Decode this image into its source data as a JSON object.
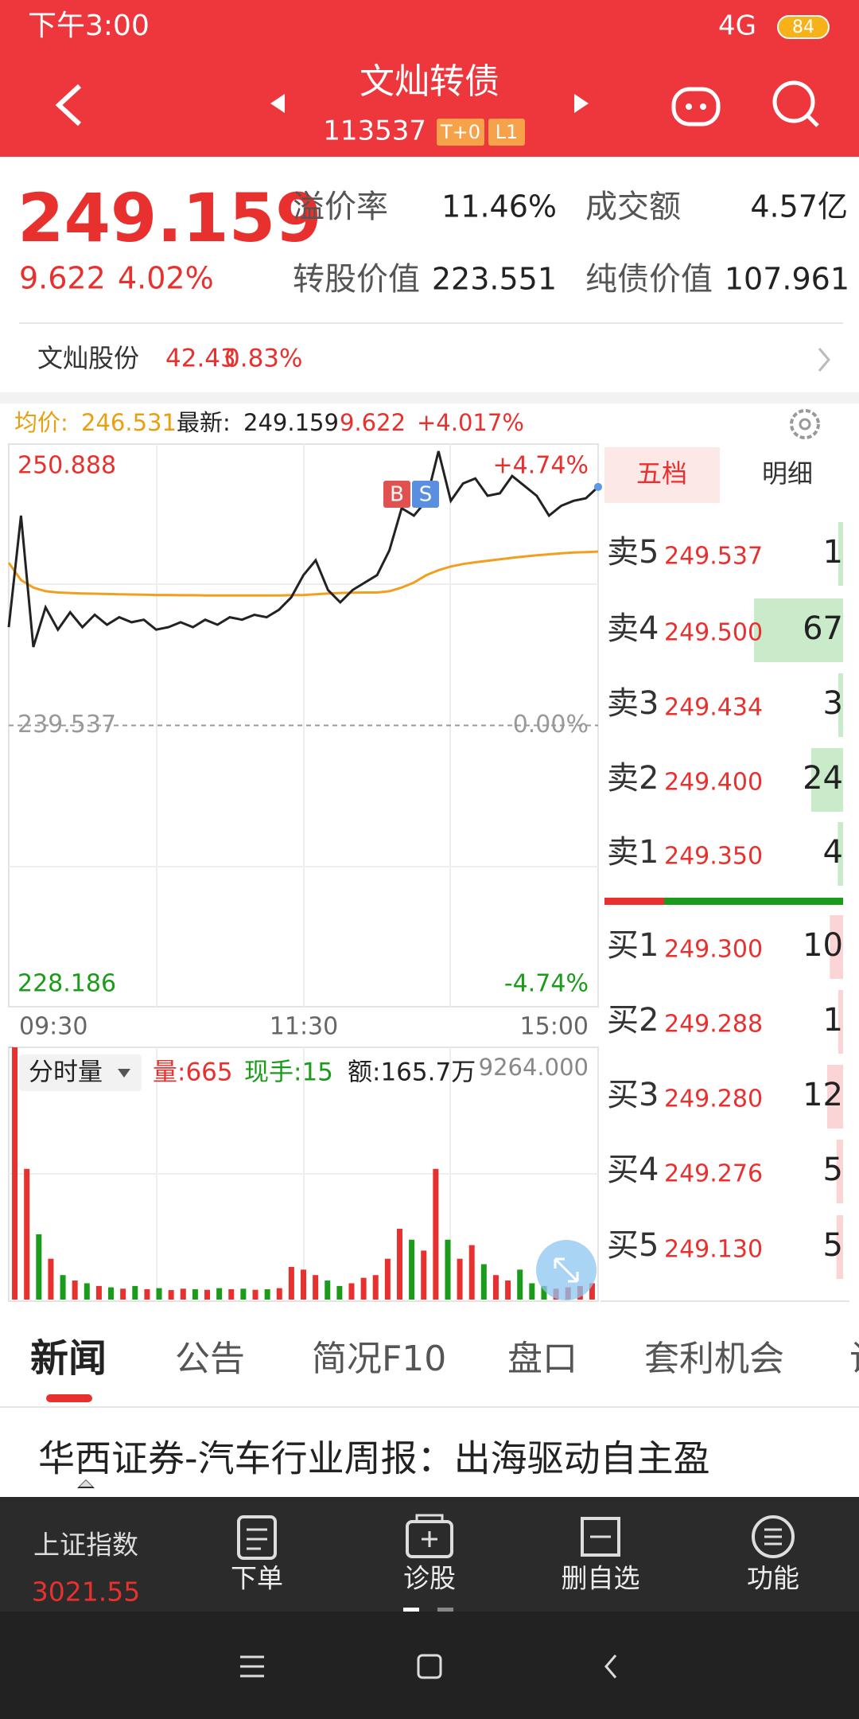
{
  "status_bar": {
    "time": "下午3:00",
    "network": "4G",
    "battery": "84"
  },
  "header": {
    "title": "文灿转债",
    "code": "113537",
    "tags": [
      "T+0",
      "L1"
    ]
  },
  "quote": {
    "price": "249.159",
    "change": "9.622",
    "change_pct": "4.02%",
    "metrics": [
      {
        "label": "溢价率",
        "value": "11.46%"
      },
      {
        "label": "成交额",
        "value": "4.57亿"
      },
      {
        "label": "转股价值",
        "value": "223.551"
      },
      {
        "label": "纯债价值",
        "value": "107.961"
      }
    ]
  },
  "underlying": {
    "name": "文灿股份",
    "price": "42.43",
    "change_pct": "0.83%"
  },
  "chart_data": [
    {
      "type": "line",
      "avg_label": "均价:",
      "avg_value": 246.531,
      "latest_label": "最新:",
      "latest_value": 249.159,
      "change": 9.622,
      "change_pct": "+4.017%",
      "ylim": [
        228.186,
        250.888
      ],
      "yticks": [
        250.888,
        239.537,
        228.186
      ],
      "pct_labels": [
        "+4.74%",
        "0.00%",
        "-4.74%"
      ],
      "x_labels": [
        "09:30",
        "11:30",
        "15:00"
      ],
      "markers": [
        "B",
        "S"
      ],
      "series": [
        {
          "color": "#222222",
          "values": [
            243.5,
            248.0,
            242.7,
            244.3,
            243.4,
            244.1,
            243.5,
            244.0,
            243.6,
            243.9,
            243.7,
            243.8,
            243.4,
            243.5,
            243.7,
            243.5,
            243.8,
            243.6,
            243.9,
            243.8,
            244.0,
            243.9,
            244.2,
            244.7,
            245.6,
            246.2,
            245.0,
            244.5,
            245.0,
            245.3,
            245.6,
            246.6,
            248.3,
            248.0,
            248.6,
            250.6,
            248.6,
            249.3,
            249.5,
            248.8,
            248.9,
            249.6,
            249.2,
            248.8,
            248.0,
            248.4,
            248.6,
            248.7,
            249.159
          ]
        },
        {
          "color": "#f0a01e",
          "values": [
            246.1,
            245.4,
            245.1,
            244.95,
            244.9,
            244.88,
            244.86,
            244.85,
            244.84,
            244.83,
            244.82,
            244.81,
            244.8,
            244.8,
            244.79,
            244.79,
            244.78,
            244.78,
            244.78,
            244.78,
            244.78,
            244.78,
            244.78,
            244.79,
            244.8,
            244.83,
            244.86,
            244.88,
            244.89,
            244.9,
            244.9,
            244.95,
            245.1,
            245.3,
            245.6,
            245.8,
            245.95,
            246.05,
            246.12,
            246.18,
            246.24,
            246.3,
            246.35,
            246.4,
            246.44,
            246.48,
            246.51,
            246.53,
            246.55
          ]
        }
      ]
    },
    {
      "type": "bar",
      "selector": "分时量",
      "stats": [
        "量:665",
        "现手:15",
        "额:165.7万"
      ],
      "ylim": [
        0,
        9264
      ],
      "yticks": [
        {
          "value": 9264,
          "label": "9264.000"
        }
      ],
      "values": [
        9264,
        4800,
        2400,
        1500,
        900,
        700,
        600,
        500,
        450,
        400,
        500,
        380,
        420,
        350,
        400,
        380,
        360,
        420,
        380,
        400,
        360,
        380,
        420,
        1200,
        1100,
        900,
        700,
        500,
        600,
        800,
        900,
        1500,
        2600,
        2200,
        1800,
        4800,
        2200,
        1500,
        2000,
        1300,
        900,
        700,
        1100,
        600,
        500,
        400,
        450,
        500,
        600
      ]
    }
  ],
  "order_book": {
    "tabs": [
      "五档",
      "明细"
    ],
    "asks": [
      {
        "label": "卖5",
        "price": "249.537",
        "volume": 1
      },
      {
        "label": "卖4",
        "price": "249.500",
        "volume": 67
      },
      {
        "label": "卖3",
        "price": "249.434",
        "volume": 3
      },
      {
        "label": "卖2",
        "price": "249.400",
        "volume": 24
      },
      {
        "label": "卖1",
        "price": "249.350",
        "volume": 4
      }
    ],
    "bids": [
      {
        "label": "买1",
        "price": "249.300",
        "volume": 10
      },
      {
        "label": "买2",
        "price": "249.288",
        "volume": 1
      },
      {
        "label": "买3",
        "price": "249.280",
        "volume": 12
      },
      {
        "label": "买4",
        "price": "249.276",
        "volume": 5
      },
      {
        "label": "买5",
        "price": "249.130",
        "volume": 5
      }
    ]
  },
  "tabs": [
    "新闻",
    "公告",
    "简况F10",
    "盘口",
    "套利机会",
    "诊"
  ],
  "news": {
    "headline": "华西证券-汽车行业周报：出海驱动自主盈"
  },
  "bottom_nav": {
    "index": {
      "name": "上证指数",
      "value": "3021.55"
    },
    "items": [
      "下单",
      "诊股",
      "删自选",
      "功能"
    ]
  }
}
